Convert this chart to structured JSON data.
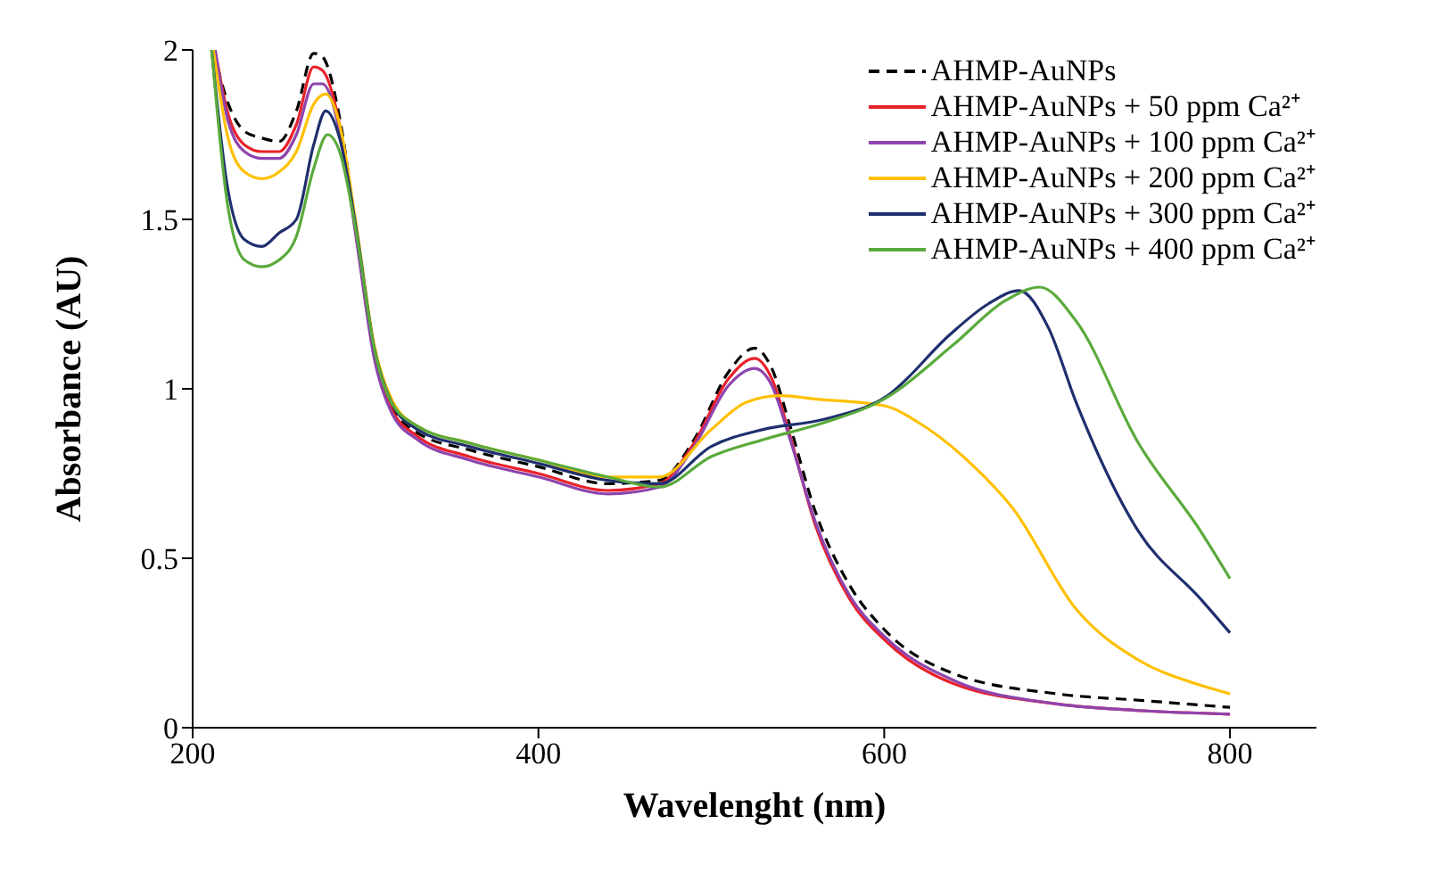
{
  "chart_data": {
    "type": "line",
    "xlabel": "Wavelenght (nm)",
    "ylabel": "Absorbance (AU)",
    "xlim": [
      200,
      850
    ],
    "xticks": [
      200,
      400,
      600,
      800
    ],
    "ylim": [
      0,
      2
    ],
    "yticks": [
      0,
      0.5,
      1,
      1.5,
      2
    ],
    "legend": "top right",
    "marker": "none",
    "line_style": "solid",
    "series": [
      {
        "name": "AHMP-AuNPs",
        "color": "#000000",
        "line_style": "dashed",
        "x": [
          212,
          220,
          230,
          240,
          250,
          260,
          270,
          275,
          285,
          295,
          305,
          315,
          330,
          360,
          400,
          440,
          470,
          490,
          510,
          525,
          535,
          545,
          560,
          580,
          600,
          640,
          700,
          750,
          800
        ],
        "values": [
          2.0,
          1.85,
          1.76,
          1.74,
          1.73,
          1.82,
          1.99,
          1.98,
          1.8,
          1.45,
          1.1,
          0.95,
          0.87,
          0.82,
          0.77,
          0.72,
          0.73,
          0.85,
          1.05,
          1.12,
          1.06,
          0.9,
          0.64,
          0.42,
          0.29,
          0.16,
          0.1,
          0.08,
          0.06
        ]
      },
      {
        "name": "AHMP-AuNPs + 50 ppm Ca²⁺",
        "color": "#e8212a",
        "x": [
          213,
          220,
          230,
          240,
          250,
          260,
          270,
          275,
          285,
          295,
          305,
          315,
          330,
          360,
          400,
          440,
          470,
          490,
          510,
          525,
          535,
          545,
          560,
          580,
          600,
          640,
          700,
          750,
          800
        ],
        "values": [
          2.0,
          1.82,
          1.72,
          1.7,
          1.7,
          1.78,
          1.95,
          1.94,
          1.78,
          1.44,
          1.1,
          0.94,
          0.86,
          0.8,
          0.75,
          0.7,
          0.72,
          0.84,
          1.03,
          1.09,
          1.03,
          0.87,
          0.6,
          0.38,
          0.26,
          0.13,
          0.07,
          0.05,
          0.04
        ]
      },
      {
        "name": "AHMP-AuNPs + 100 ppm Ca²⁺",
        "color": "#8e44ad",
        "x": [
          213,
          220,
          230,
          240,
          250,
          260,
          270,
          275,
          285,
          295,
          305,
          315,
          330,
          360,
          400,
          440,
          470,
          490,
          510,
          525,
          535,
          545,
          560,
          580,
          600,
          640,
          700,
          750,
          800
        ],
        "values": [
          2.0,
          1.8,
          1.7,
          1.68,
          1.68,
          1.75,
          1.9,
          1.9,
          1.76,
          1.43,
          1.09,
          0.93,
          0.85,
          0.79,
          0.74,
          0.69,
          0.71,
          0.83,
          1.01,
          1.06,
          1.01,
          0.86,
          0.61,
          0.39,
          0.27,
          0.14,
          0.07,
          0.05,
          0.04
        ]
      },
      {
        "name": "AHMP-AuNPs + 200 ppm Ca²⁺",
        "color": "#ffc000",
        "x": [
          212,
          220,
          230,
          240,
          250,
          260,
          270,
          277,
          285,
          295,
          305,
          315,
          330,
          360,
          400,
          440,
          470,
          500,
          520,
          540,
          560,
          600,
          620,
          650,
          674,
          711,
          747,
          780,
          800
        ],
        "values": [
          2.0,
          1.75,
          1.64,
          1.62,
          1.64,
          1.7,
          1.84,
          1.87,
          1.78,
          1.47,
          1.13,
          0.97,
          0.89,
          0.84,
          0.79,
          0.74,
          0.74,
          0.88,
          0.96,
          0.98,
          0.97,
          0.95,
          0.9,
          0.78,
          0.65,
          0.35,
          0.2,
          0.13,
          0.1
        ]
      },
      {
        "name": "AHMP-AuNPs + 300 ppm Ca²⁺",
        "color": "#1f2f6e",
        "x": [
          211,
          220,
          230,
          240,
          250,
          260,
          270,
          277,
          285,
          295,
          305,
          315,
          330,
          360,
          400,
          440,
          470,
          500,
          530,
          565,
          602,
          638,
          660,
          678,
          695,
          711,
          747,
          783,
          800
        ],
        "values": [
          2.0,
          1.6,
          1.44,
          1.42,
          1.46,
          1.5,
          1.72,
          1.82,
          1.74,
          1.46,
          1.12,
          0.96,
          0.88,
          0.83,
          0.78,
          0.73,
          0.72,
          0.83,
          0.88,
          0.91,
          0.98,
          1.16,
          1.25,
          1.29,
          1.18,
          0.96,
          0.58,
          0.38,
          0.28
        ]
      },
      {
        "name": "AHMP-AuNPs + 400 ppm Ca²⁺",
        "color": "#5aaa3c",
        "x": [
          211,
          220,
          230,
          240,
          250,
          260,
          270,
          278,
          285,
          295,
          305,
          315,
          330,
          360,
          400,
          440,
          470,
          500,
          530,
          565,
          600,
          640,
          670,
          690,
          711,
          747,
          783,
          800
        ],
        "values": [
          2.0,
          1.55,
          1.38,
          1.36,
          1.38,
          1.45,
          1.65,
          1.75,
          1.7,
          1.45,
          1.12,
          0.96,
          0.89,
          0.84,
          0.79,
          0.74,
          0.71,
          0.8,
          0.85,
          0.9,
          0.97,
          1.13,
          1.26,
          1.3,
          1.2,
          0.84,
          0.58,
          0.44
        ]
      }
    ]
  }
}
